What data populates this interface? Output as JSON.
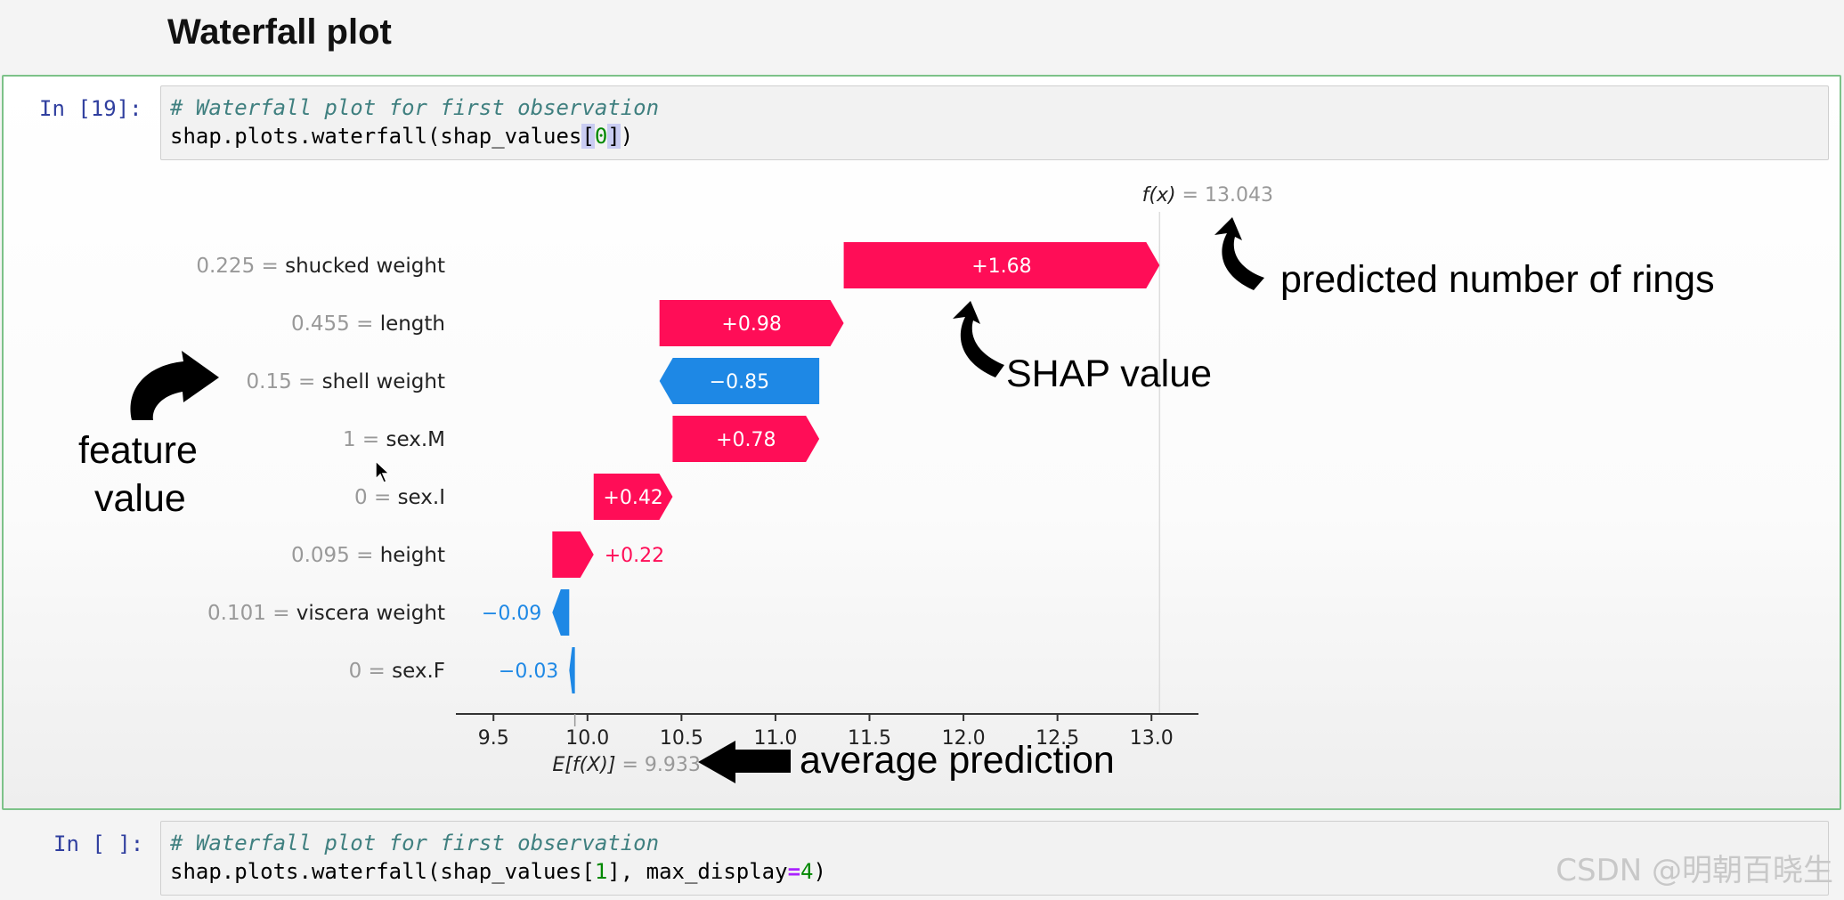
{
  "page": {
    "heading": "Waterfall plot"
  },
  "cell_19": {
    "prompt": "In [19]:",
    "comment": "# Waterfall plot for first observation",
    "code_prefix": "shap.plots.waterfall(shap_values",
    "code_open": "[",
    "code_index": "0",
    "code_close": "]",
    "code_suffix": ")"
  },
  "chart_data": {
    "type": "waterfall",
    "base_value": 9.933,
    "base_label": "E[f(X)]",
    "base_value_text": "= 9.933",
    "output_value": 13.043,
    "output_label": "f(x)",
    "output_value_text": "= 13.043",
    "features": [
      {
        "feature_value": "0.225",
        "name": "shucked weight",
        "shap": 1.68,
        "label": "+1.68"
      },
      {
        "feature_value": "0.455",
        "name": "length",
        "shap": 0.98,
        "label": "+0.98"
      },
      {
        "feature_value": "0.15",
        "name": "shell weight",
        "shap": -0.85,
        "label": "−0.85"
      },
      {
        "feature_value": "1",
        "name": "sex.M",
        "shap": 0.78,
        "label": "+0.78"
      },
      {
        "feature_value": "0",
        "name": "sex.I",
        "shap": 0.42,
        "label": "+0.42"
      },
      {
        "feature_value": "0.095",
        "name": "height",
        "shap": 0.22,
        "label": "+0.22"
      },
      {
        "feature_value": "0.101",
        "name": "viscera weight",
        "shap": -0.09,
        "label": "−0.09"
      },
      {
        "feature_value": "0",
        "name": "sex.F",
        "shap": -0.03,
        "label": "−0.03"
      }
    ],
    "xlim": [
      9.3,
      13.25
    ],
    "xticks": [
      "9.5",
      "10.0",
      "10.5",
      "11.0",
      "11.5",
      "12.0",
      "12.5",
      "13.0"
    ],
    "colors": {
      "positive": "#ff0d57",
      "negative": "#1e88e5",
      "value_text": "#999999",
      "label_text": "#222222"
    }
  },
  "annotations": {
    "predicted": "predicted number of rings",
    "shap_value": "SHAP value",
    "feature_line1": "feature",
    "feature_line2": "value",
    "average": "average prediction"
  },
  "cell_next": {
    "prompt": "In [ ]:",
    "comment": "# Waterfall plot for first observation",
    "code_prefix": "shap.plots.waterfall(shap_values[",
    "code_index": "1",
    "code_mid": "], max_display",
    "code_eq": "=",
    "code_num": "4",
    "code_suffix": ")"
  },
  "watermark": "CSDN @明朝百晓生"
}
